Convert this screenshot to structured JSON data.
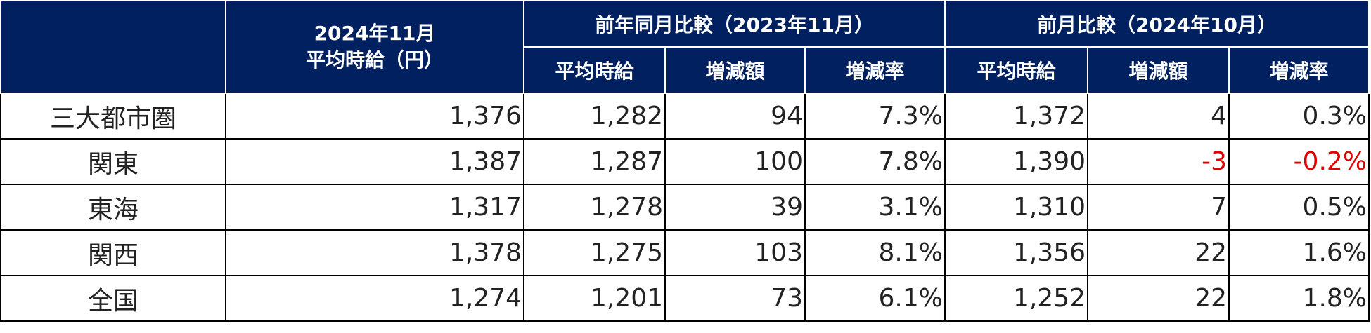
{
  "table": {
    "current_header": [
      "2024年11月",
      "平均時給（円）"
    ],
    "groups": [
      {
        "title": "前年同月比較（2023年11月）",
        "columns": [
          "平均時給",
          "増減額",
          "増減率"
        ]
      },
      {
        "title": "前月比較（2024年10月）",
        "columns": [
          "平均時給",
          "増減額",
          "増減率"
        ]
      }
    ],
    "rows": [
      [
        "三大都市圏",
        "1,376",
        "1,282",
        "94",
        "7.3%",
        "1,372",
        "4",
        "0.3%"
      ],
      [
        "関東",
        "1,387",
        "1,287",
        "100",
        "7.8%",
        "1,390",
        "-3",
        "-0.2%"
      ],
      [
        "東海",
        "1,317",
        "1,278",
        "39",
        "3.1%",
        "1,310",
        "7",
        "0.5%"
      ],
      [
        "関西",
        "1,378",
        "1,275",
        "103",
        "8.1%",
        "1,356",
        "22",
        "1.6%"
      ],
      [
        "全国",
        "1,274",
        "1,201",
        "73",
        "6.1%",
        "1,252",
        "22",
        "1.8%"
      ]
    ]
  }
}
